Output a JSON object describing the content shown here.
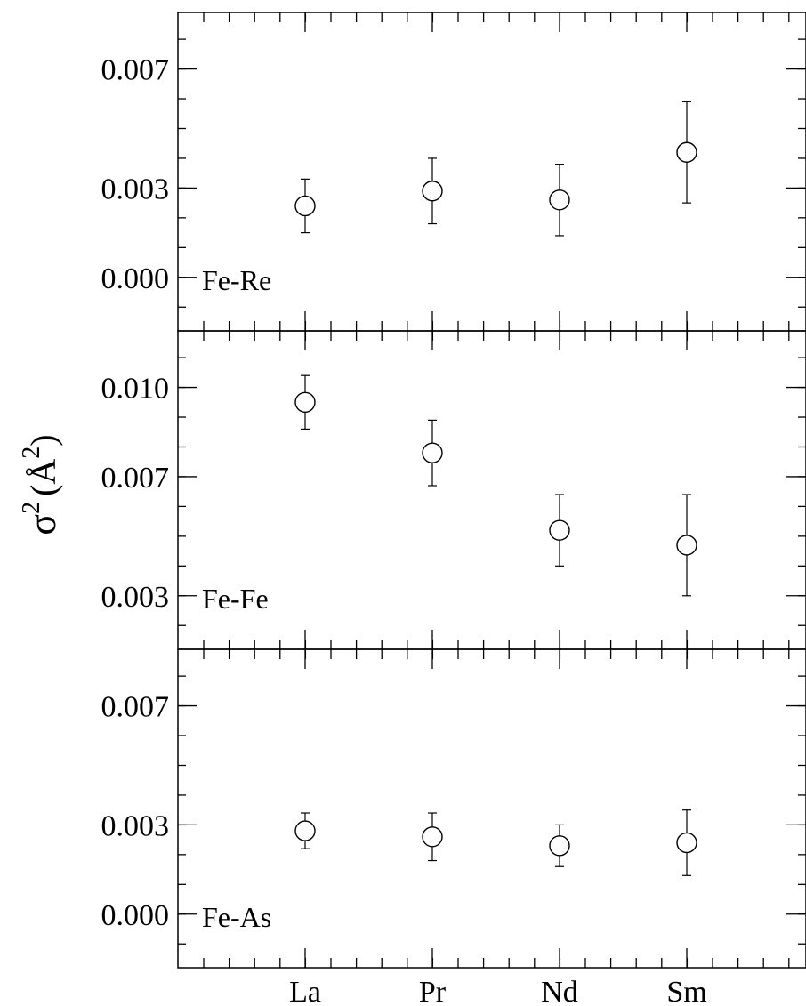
{
  "chart_data": {
    "type": "scatter",
    "layout": "stacked-panels-shared-x",
    "ylabel_base": "σ",
    "ylabel_sup": "2",
    "ylabel_unit": "(Å",
    "ylabel_unit_sup": "2",
    "ylabel_close": ")",
    "categories": [
      "La",
      "Pr",
      "Nd",
      "Sm"
    ],
    "x_tick_labels": [
      "La",
      "Pr",
      "Nd",
      "Sm"
    ],
    "marker": "open-circle",
    "error_bars": true,
    "panels": [
      {
        "label": "Fe-Re",
        "ylim": [
          -0.0018,
          0.0089
        ],
        "yticks": [
          0.0,
          0.003,
          0.007
        ],
        "ytick_labels": [
          "0.000",
          "0.003",
          "0.007"
        ],
        "values": [
          0.0024,
          0.0029,
          0.0026,
          0.0042
        ],
        "errors": [
          0.0009,
          0.0011,
          0.0012,
          0.0017
        ]
      },
      {
        "label": "Fe-Fe",
        "ylim": [
          0.0012,
          0.0119
        ],
        "yticks": [
          0.003,
          0.007,
          0.01
        ],
        "ytick_labels": [
          "0.003",
          "0.007",
          "0.010"
        ],
        "values": [
          0.0095,
          0.0078,
          0.0052,
          0.0047
        ],
        "errors": [
          0.0009,
          0.0011,
          0.0012,
          0.0017
        ]
      },
      {
        "label": "Fe-As",
        "ylim": [
          -0.0018,
          0.0089
        ],
        "yticks": [
          0.0,
          0.003,
          0.007
        ],
        "ytick_labels": [
          "0.000",
          "0.003",
          "0.007"
        ],
        "values": [
          0.0028,
          0.0026,
          0.0023,
          0.0024
        ],
        "errors": [
          0.0006,
          0.0008,
          0.0007,
          0.0011
        ]
      }
    ]
  }
}
